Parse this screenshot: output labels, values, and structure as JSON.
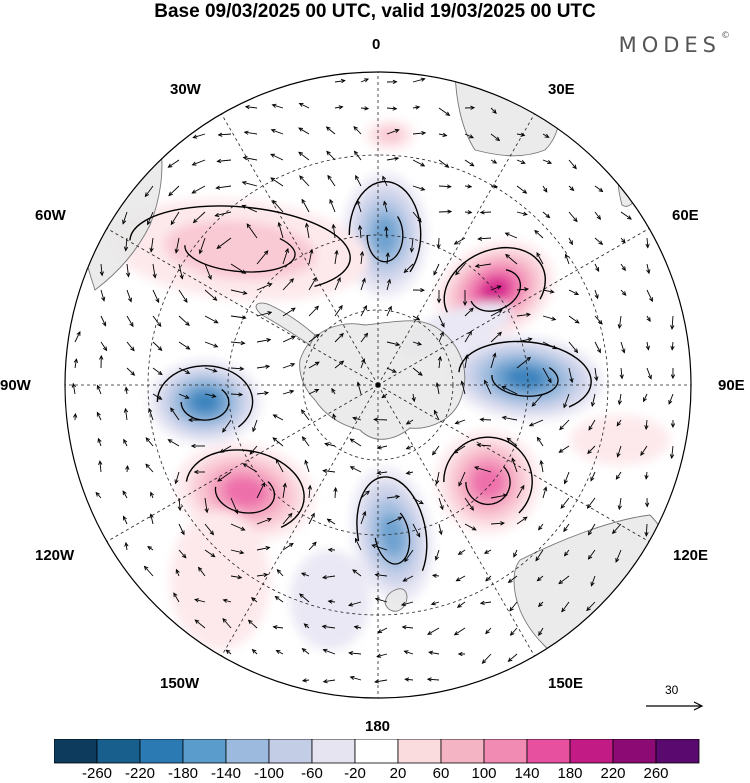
{
  "header": {
    "title": "Base 09/03/2025 00 UTC, valid 19/03/2025 00 UTC",
    "brand": "MODES",
    "brand_mark": "©"
  },
  "map": {
    "projection": "south-polar-stereographic",
    "longitude_labels": {
      "0": "0",
      "30E": "30E",
      "60E": "60E",
      "90E": "90E",
      "120E": "120E",
      "150E": "150E",
      "180": "180",
      "150W": "150W",
      "120W": "120W",
      "90W": "90W",
      "60W": "60W",
      "30W": "30W"
    },
    "anomaly_centers": [
      {
        "id": "pos-60E",
        "sign": "positive",
        "peak": 220
      },
      {
        "id": "neg-90E",
        "sign": "negative",
        "peak": -200
      },
      {
        "id": "pos-130E",
        "sign": "positive",
        "peak": 180
      },
      {
        "id": "neg-175W",
        "sign": "negative",
        "peak": -140
      },
      {
        "id": "pos-130W",
        "sign": "positive",
        "peak": 180
      },
      {
        "id": "neg-95W",
        "sign": "negative",
        "peak": -200
      },
      {
        "id": "neg-10E",
        "sign": "negative",
        "peak": -140
      },
      {
        "id": "pos-60W",
        "sign": "positive",
        "peak": 60
      }
    ],
    "vector_reference": {
      "value": "30"
    }
  },
  "colorbar": {
    "ticks": [
      "-260",
      "-220",
      "-180",
      "-140",
      "-100",
      "-60",
      "-20",
      "20",
      "60",
      "100",
      "140",
      "180",
      "220",
      "260"
    ],
    "colors": [
      "#0d3b5e",
      "#185f8e",
      "#2b7ab3",
      "#5a9ccb",
      "#9bbadd",
      "#c4cde6",
      "#e6e4f1",
      "#ffffff",
      "#fadcdf",
      "#f5b4c4",
      "#f28bb4",
      "#e6509e",
      "#c21b86",
      "#8c0a73",
      "#5a0a6e"
    ]
  }
}
